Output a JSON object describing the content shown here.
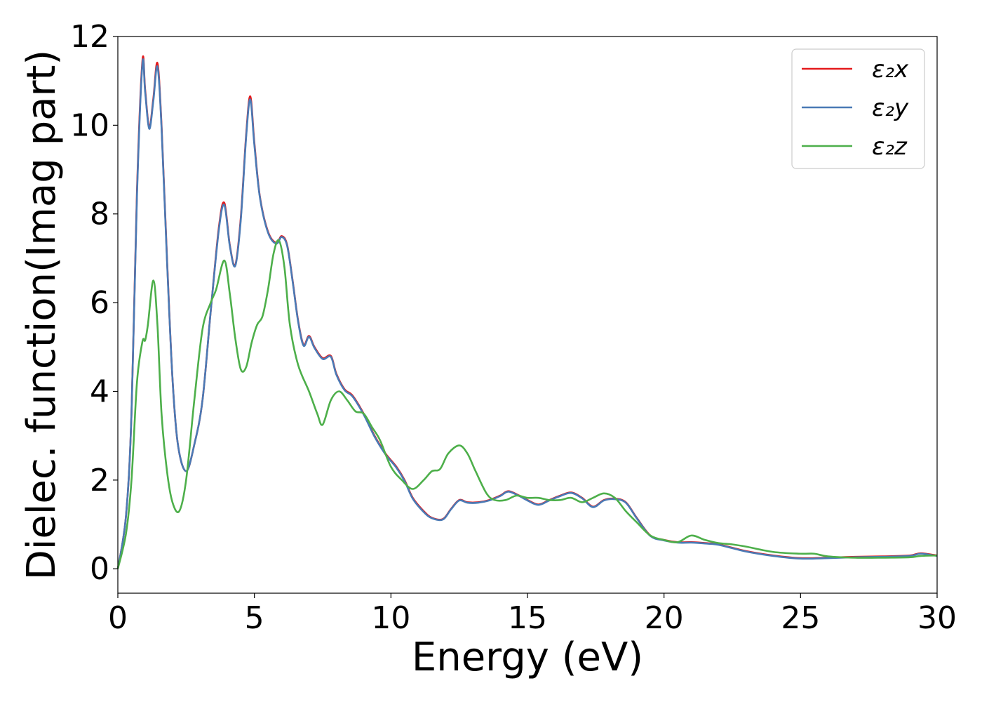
{
  "chart_data": {
    "type": "line",
    "title": "",
    "xlabel": "Energy (eV)",
    "ylabel": "Dielec. function(Imag part)",
    "xlim": [
      0,
      30
    ],
    "ylim": [
      -0.55,
      12
    ],
    "xticks": [
      0,
      5,
      10,
      15,
      20,
      25,
      30
    ],
    "yticks": [
      0,
      2,
      4,
      6,
      8,
      10,
      12
    ],
    "grid": false,
    "legend_position": "top-right",
    "series": [
      {
        "name": "ε₂x",
        "color": "#e41a1c",
        "x": [
          0,
          0.3,
          0.5,
          0.7,
          0.9,
          1.0,
          1.15,
          1.3,
          1.45,
          1.6,
          1.8,
          2.0,
          2.2,
          2.5,
          2.8,
          3.1,
          3.4,
          3.7,
          3.9,
          4.1,
          4.3,
          4.5,
          4.7,
          4.85,
          5.0,
          5.2,
          5.5,
          5.8,
          6.0,
          6.2,
          6.4,
          6.6,
          6.8,
          7.0,
          7.2,
          7.5,
          7.8,
          8.0,
          8.3,
          8.6,
          9.0,
          9.4,
          9.8,
          10.2,
          10.5,
          10.8,
          11.2,
          11.5,
          11.9,
          12.2,
          12.5,
          12.8,
          13.2,
          13.6,
          14.0,
          14.3,
          14.7,
          15.0,
          15.4,
          15.8,
          16.2,
          16.6,
          17.0,
          17.4,
          17.8,
          18.2,
          18.6,
          19.0,
          19.5,
          20.0,
          20.5,
          21.0,
          21.5,
          22.0,
          23.0,
          24.0,
          25.0,
          26.0,
          27.0,
          28.0,
          29.0,
          29.4,
          30.0
        ],
        "y": [
          0.0,
          1.2,
          3.5,
          8.5,
          11.45,
          10.8,
          9.95,
          10.6,
          11.4,
          10.0,
          7.0,
          4.3,
          2.8,
          2.2,
          2.8,
          3.8,
          5.8,
          7.7,
          8.25,
          7.3,
          6.85,
          7.9,
          9.8,
          10.65,
          9.6,
          8.4,
          7.6,
          7.35,
          7.5,
          7.3,
          6.5,
          5.6,
          5.05,
          5.25,
          5.0,
          4.75,
          4.8,
          4.4,
          4.05,
          3.9,
          3.5,
          3.0,
          2.6,
          2.3,
          2.0,
          1.6,
          1.3,
          1.15,
          1.12,
          1.35,
          1.55,
          1.5,
          1.5,
          1.55,
          1.65,
          1.75,
          1.65,
          1.55,
          1.45,
          1.55,
          1.65,
          1.72,
          1.6,
          1.4,
          1.55,
          1.58,
          1.5,
          1.15,
          0.75,
          0.65,
          0.6,
          0.6,
          0.58,
          0.55,
          0.4,
          0.3,
          0.24,
          0.25,
          0.27,
          0.28,
          0.3,
          0.35,
          0.3
        ]
      },
      {
        "name": "ε₂y",
        "color": "#4a7ab5",
        "x": [
          0,
          0.3,
          0.5,
          0.7,
          0.9,
          1.0,
          1.15,
          1.3,
          1.45,
          1.6,
          1.8,
          2.0,
          2.2,
          2.5,
          2.8,
          3.1,
          3.4,
          3.7,
          3.9,
          4.1,
          4.3,
          4.5,
          4.7,
          4.85,
          5.0,
          5.2,
          5.5,
          5.8,
          6.0,
          6.2,
          6.4,
          6.6,
          6.8,
          7.0,
          7.2,
          7.5,
          7.8,
          8.0,
          8.3,
          8.6,
          9.0,
          9.4,
          9.8,
          10.2,
          10.5,
          10.8,
          11.2,
          11.5,
          11.9,
          12.2,
          12.5,
          12.8,
          13.2,
          13.6,
          14.0,
          14.3,
          14.7,
          15.0,
          15.4,
          15.8,
          16.2,
          16.6,
          17.0,
          17.4,
          17.8,
          18.2,
          18.6,
          19.0,
          19.5,
          20.0,
          20.5,
          21.0,
          21.5,
          22.0,
          23.0,
          24.0,
          25.0,
          26.0,
          27.0,
          28.0,
          29.0,
          29.4,
          30.0
        ],
        "y": [
          0.0,
          1.2,
          3.5,
          8.4,
          11.38,
          10.75,
          9.92,
          10.55,
          11.32,
          9.95,
          6.95,
          4.3,
          2.8,
          2.2,
          2.8,
          3.8,
          5.8,
          7.65,
          8.2,
          7.28,
          6.83,
          7.85,
          9.75,
          10.58,
          9.55,
          8.38,
          7.58,
          7.33,
          7.48,
          7.28,
          6.48,
          5.58,
          5.03,
          5.23,
          4.98,
          4.73,
          4.78,
          4.38,
          4.03,
          3.88,
          3.48,
          2.98,
          2.58,
          2.28,
          1.98,
          1.58,
          1.28,
          1.14,
          1.11,
          1.34,
          1.54,
          1.49,
          1.49,
          1.54,
          1.64,
          1.74,
          1.64,
          1.54,
          1.44,
          1.54,
          1.64,
          1.71,
          1.59,
          1.39,
          1.54,
          1.57,
          1.49,
          1.14,
          0.74,
          0.64,
          0.59,
          0.59,
          0.57,
          0.54,
          0.39,
          0.29,
          0.23,
          0.24,
          0.26,
          0.27,
          0.29,
          0.34,
          0.29
        ]
      },
      {
        "name": "ε₂z",
        "color": "#4daf4a",
        "x": [
          0,
          0.3,
          0.5,
          0.7,
          0.9,
          1.0,
          1.1,
          1.3,
          1.45,
          1.6,
          1.8,
          2.0,
          2.25,
          2.5,
          2.8,
          3.1,
          3.4,
          3.6,
          3.9,
          4.1,
          4.3,
          4.5,
          4.7,
          4.9,
          5.1,
          5.3,
          5.5,
          5.7,
          5.9,
          6.1,
          6.3,
          6.6,
          7.0,
          7.3,
          7.5,
          7.8,
          8.1,
          8.4,
          8.7,
          9.0,
          9.3,
          9.6,
          10.0,
          10.4,
          10.8,
          11.2,
          11.5,
          11.8,
          12.1,
          12.5,
          12.8,
          13.1,
          13.5,
          13.8,
          14.2,
          14.6,
          15.0,
          15.4,
          15.8,
          16.2,
          16.6,
          17.0,
          17.4,
          17.8,
          18.2,
          18.6,
          19.0,
          19.5,
          20.0,
          20.5,
          21.0,
          21.5,
          22.0,
          22.5,
          23.0,
          24.0,
          25.0,
          25.5,
          26.0,
          27.0,
          28.0,
          29.0,
          29.4,
          30.0
        ],
        "y": [
          0.0,
          0.8,
          2.0,
          4.2,
          5.12,
          5.15,
          5.5,
          6.5,
          5.5,
          3.5,
          2.2,
          1.5,
          1.3,
          2.0,
          3.8,
          5.4,
          6.0,
          6.3,
          6.95,
          6.2,
          5.2,
          4.5,
          4.55,
          5.1,
          5.5,
          5.7,
          6.3,
          7.1,
          7.4,
          6.8,
          5.5,
          4.6,
          4.0,
          3.5,
          3.25,
          3.8,
          4.0,
          3.8,
          3.55,
          3.5,
          3.2,
          2.9,
          2.3,
          2.0,
          1.8,
          2.0,
          2.2,
          2.25,
          2.6,
          2.78,
          2.6,
          2.2,
          1.7,
          1.55,
          1.55,
          1.65,
          1.6,
          1.6,
          1.55,
          1.55,
          1.6,
          1.5,
          1.6,
          1.7,
          1.6,
          1.3,
          1.05,
          0.75,
          0.65,
          0.6,
          0.75,
          0.65,
          0.58,
          0.55,
          0.5,
          0.38,
          0.34,
          0.34,
          0.28,
          0.25,
          0.25,
          0.26,
          0.29,
          0.3
        ]
      }
    ]
  }
}
